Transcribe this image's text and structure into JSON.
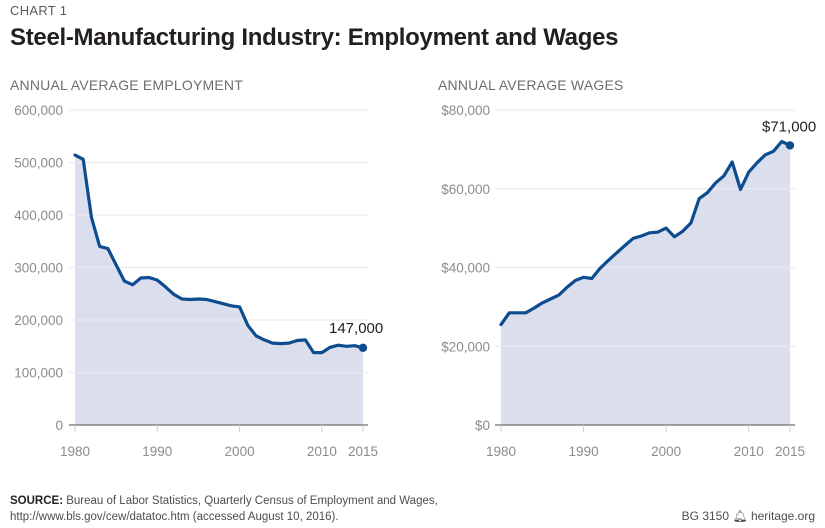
{
  "header": {
    "kicker": "CHART 1",
    "title": "Steel-Manufacturing Industry: Employment and Wages"
  },
  "footer": {
    "source_label": "SOURCE:",
    "source_text": "Bureau of Labor Statistics, Quarterly Census of Employment and Wages,",
    "source_url_line": "http://www.bls.gov/cew/datatoc.htm (accessed August 10, 2016).",
    "report_id": "BG 3150",
    "brand_icon": "liberty-bell-icon",
    "brand": "heritage.org"
  },
  "colors": {
    "line": "#0d4c8f",
    "fill": "#dbdfed",
    "grid": "#ebebeb",
    "axis": "#6d6e71"
  },
  "chart_data": [
    {
      "type": "area",
      "title": "ANNUAL AVERAGE EMPLOYMENT",
      "xlabel": "",
      "ylabel": "",
      "x_ticks": [
        "1980",
        "1990",
        "2000",
        "2010",
        "2015"
      ],
      "y_ticks": [
        "0",
        "100,000",
        "200,000",
        "300,000",
        "400,000",
        "500,000",
        "600,000"
      ],
      "ylim": [
        0,
        600000
      ],
      "xlim": [
        1980,
        2015
      ],
      "grid": true,
      "end_label": "147,000",
      "x": [
        1980,
        1981,
        1982,
        1983,
        1984,
        1985,
        1986,
        1987,
        1988,
        1989,
        1990,
        1991,
        1992,
        1993,
        1994,
        1995,
        1996,
        1997,
        1998,
        1999,
        2000,
        2001,
        2002,
        2003,
        2004,
        2005,
        2006,
        2007,
        2008,
        2009,
        2010,
        2011,
        2012,
        2013,
        2014,
        2015
      ],
      "values": [
        514000,
        506000,
        395000,
        340000,
        336000,
        305000,
        274000,
        267000,
        280000,
        281000,
        276000,
        263000,
        249000,
        240000,
        239000,
        240000,
        239000,
        235000,
        231000,
        227000,
        225000,
        190000,
        170000,
        162000,
        156000,
        155000,
        156000,
        161000,
        162000,
        138000,
        138000,
        148000,
        152000,
        150000,
        151000,
        147000
      ]
    },
    {
      "type": "area",
      "title": "ANNUAL AVERAGE WAGES",
      "xlabel": "",
      "ylabel": "",
      "x_ticks": [
        "1980",
        "1990",
        "2000",
        "2010",
        "2015"
      ],
      "y_ticks": [
        "$0",
        "$20,000",
        "$40,000",
        "$60,000",
        "$80,000"
      ],
      "ylim": [
        0,
        80000
      ],
      "xlim": [
        1980,
        2015
      ],
      "grid": true,
      "end_label": "$71,000",
      "x": [
        1980,
        1981,
        1982,
        1983,
        1984,
        1985,
        1986,
        1987,
        1988,
        1989,
        1990,
        1991,
        1992,
        1993,
        1994,
        1995,
        1996,
        1997,
        1998,
        1999,
        2000,
        2001,
        2002,
        2003,
        2004,
        2005,
        2006,
        2007,
        2008,
        2009,
        2010,
        2011,
        2012,
        2013,
        2014,
        2015
      ],
      "values": [
        25500,
        28500,
        28500,
        28500,
        29700,
        31000,
        32000,
        33000,
        35000,
        36700,
        37500,
        37200,
        39800,
        41800,
        43700,
        45600,
        47400,
        48000,
        48800,
        49000,
        50000,
        47800,
        49200,
        51300,
        57500,
        59000,
        61500,
        63300,
        66800,
        59800,
        64200,
        66600,
        68600,
        69500,
        72000,
        71000
      ]
    }
  ]
}
